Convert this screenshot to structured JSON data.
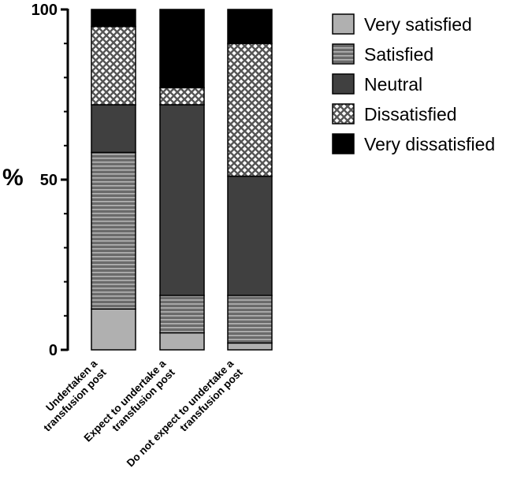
{
  "chart_data": {
    "type": "bar",
    "stacked": true,
    "title": "",
    "xlabel": "",
    "ylabel": "%",
    "ylim": [
      0,
      100
    ],
    "yticks": [
      0,
      50,
      100
    ],
    "categories": [
      [
        "Undertaken a",
        "transfusion post"
      ],
      [
        "Expect to undertake a",
        "transfusion post"
      ],
      [
        "Do not expect to undertake a",
        "transfusion post"
      ]
    ],
    "series": [
      {
        "name": "Very satisfied",
        "values": [
          12,
          5,
          2
        ],
        "color": "#b0b0b0",
        "pattern": "solid"
      },
      {
        "name": "Satisfied",
        "values": [
          46,
          11,
          14
        ],
        "color": "#6b6b6b",
        "pattern": "horizontal-lines"
      },
      {
        "name": "Neutral",
        "values": [
          14,
          56,
          35
        ],
        "color": "#404040",
        "pattern": "solid"
      },
      {
        "name": "Dissatisfied",
        "values": [
          23,
          5,
          39
        ],
        "color": "#8a8a8a",
        "pattern": "crosshatch"
      },
      {
        "name": "Very dissatisfied",
        "values": [
          5,
          23,
          10
        ],
        "color": "#000000",
        "pattern": "solid"
      }
    ],
    "legend_position": "top-right"
  }
}
